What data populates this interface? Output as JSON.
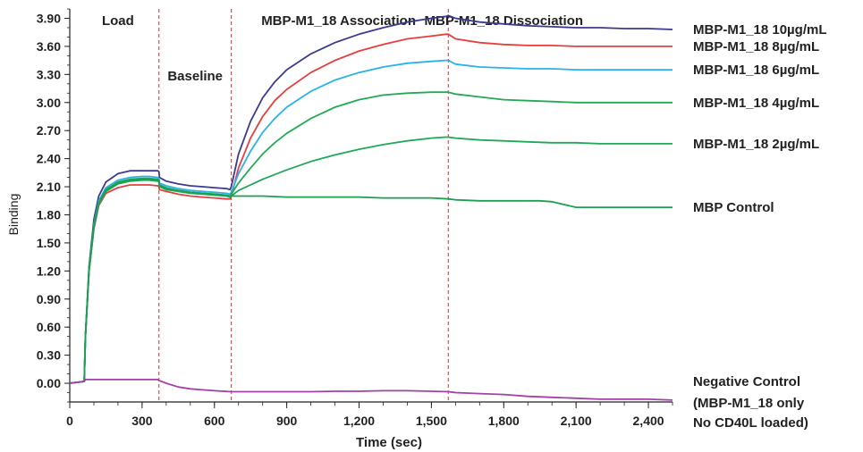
{
  "chart_data": {
    "type": "line",
    "title": "",
    "xlabel": "Time (sec)",
    "ylabel": "Binding",
    "xlim": [
      0,
      2500
    ],
    "ylim": [
      -0.2,
      4.0
    ],
    "xticks": [
      0,
      300,
      600,
      900,
      1200,
      1500,
      1800,
      2100,
      2400
    ],
    "xtick_labels": [
      "0",
      "300",
      "600",
      "900",
      "1,200",
      "1,500",
      "1,800",
      "2,100",
      "2,400"
    ],
    "yticks": [
      0,
      0.3,
      0.6,
      0.9,
      1.2,
      1.5,
      1.8,
      2.1,
      2.4,
      2.7,
      3.0,
      3.3,
      3.6,
      3.9
    ],
    "ytick_labels": [
      "0.00",
      "0.30",
      "0.60",
      "0.90",
      "1.20",
      "1.50",
      "1.80",
      "2.10",
      "2.40",
      "2.70",
      "3.00",
      "3.30",
      "3.60",
      "3.90"
    ],
    "phase_boundaries": [
      370,
      670,
      1570
    ],
    "phases": [
      {
        "label": "Load",
        "x": 200
      },
      {
        "label": "Baseline",
        "x": 520
      },
      {
        "label": "MBP-M1_18 Association",
        "x": 1115
      },
      {
        "label": "MBP-M1_18 Dissociation",
        "x": 1800
      }
    ],
    "grid": false,
    "series": [
      {
        "name": "MBP-M1_18   10µg/mL",
        "color": "#3b3a8f",
        "x": [
          0,
          60,
          65,
          80,
          100,
          120,
          150,
          200,
          250,
          300,
          330,
          365,
          370,
          372,
          400,
          450,
          500,
          550,
          600,
          650,
          665,
          670,
          700,
          750,
          800,
          850,
          900,
          1000,
          1100,
          1200,
          1300,
          1400,
          1500,
          1560,
          1570,
          1600,
          1700,
          1800,
          1900,
          2000,
          2100,
          2200,
          2300,
          2400,
          2500
        ],
        "y": [
          0.0,
          0.02,
          0.5,
          1.25,
          1.75,
          2.0,
          2.15,
          2.24,
          2.27,
          2.27,
          2.27,
          2.27,
          2.26,
          2.2,
          2.16,
          2.13,
          2.11,
          2.1,
          2.09,
          2.08,
          2.07,
          2.1,
          2.45,
          2.8,
          3.05,
          3.22,
          3.35,
          3.52,
          3.64,
          3.73,
          3.8,
          3.86,
          3.9,
          3.92,
          3.93,
          3.9,
          3.86,
          3.84,
          3.82,
          3.81,
          3.8,
          3.8,
          3.79,
          3.79,
          3.78
        ]
      },
      {
        "name": "MBP-M1_18   8µg/mL",
        "color": "#e53e3e",
        "x": [
          0,
          60,
          65,
          80,
          100,
          120,
          150,
          200,
          250,
          300,
          330,
          365,
          370,
          372,
          400,
          450,
          500,
          550,
          600,
          650,
          665,
          670,
          700,
          750,
          800,
          850,
          900,
          1000,
          1100,
          1200,
          1300,
          1400,
          1500,
          1560,
          1570,
          1600,
          1700,
          1800,
          1900,
          2000,
          2100,
          2200,
          2300,
          2400,
          2500
        ],
        "y": [
          0.0,
          0.02,
          0.5,
          1.2,
          1.65,
          1.9,
          2.03,
          2.09,
          2.12,
          2.12,
          2.12,
          2.11,
          2.1,
          2.07,
          2.05,
          2.02,
          2.0,
          1.99,
          1.98,
          1.97,
          1.97,
          2.0,
          2.3,
          2.62,
          2.85,
          3.02,
          3.14,
          3.32,
          3.45,
          3.55,
          3.62,
          3.68,
          3.71,
          3.73,
          3.73,
          3.68,
          3.64,
          3.62,
          3.61,
          3.61,
          3.6,
          3.6,
          3.6,
          3.6,
          3.6
        ]
      },
      {
        "name": "MBP-M1_18   6µg/mL",
        "color": "#29b2e8",
        "x": [
          0,
          60,
          65,
          80,
          100,
          120,
          150,
          200,
          250,
          300,
          330,
          365,
          370,
          372,
          400,
          450,
          500,
          550,
          600,
          650,
          665,
          670,
          700,
          750,
          800,
          850,
          900,
          1000,
          1100,
          1200,
          1300,
          1400,
          1500,
          1560,
          1570,
          1600,
          1700,
          1800,
          1900,
          2000,
          2100,
          2200,
          2300,
          2400,
          2500
        ],
        "y": [
          0.0,
          0.02,
          0.5,
          1.22,
          1.7,
          1.95,
          2.09,
          2.17,
          2.2,
          2.21,
          2.21,
          2.2,
          2.19,
          2.14,
          2.11,
          2.08,
          2.06,
          2.05,
          2.04,
          2.03,
          2.02,
          2.04,
          2.24,
          2.48,
          2.68,
          2.83,
          2.95,
          3.12,
          3.24,
          3.32,
          3.38,
          3.42,
          3.44,
          3.45,
          3.45,
          3.41,
          3.38,
          3.37,
          3.36,
          3.36,
          3.35,
          3.35,
          3.35,
          3.35,
          3.35
        ]
      },
      {
        "name": "MBP-M1_18   4µg/mL",
        "color": "#22aa55",
        "x": [
          0,
          60,
          65,
          80,
          100,
          120,
          150,
          200,
          250,
          300,
          330,
          365,
          370,
          372,
          400,
          450,
          500,
          550,
          600,
          650,
          665,
          670,
          700,
          750,
          800,
          850,
          900,
          1000,
          1100,
          1200,
          1300,
          1400,
          1500,
          1560,
          1570,
          1600,
          1700,
          1800,
          1900,
          2000,
          2100,
          2200,
          2300,
          2400,
          2500
        ],
        "y": [
          0.0,
          0.02,
          0.5,
          1.22,
          1.68,
          1.93,
          2.07,
          2.15,
          2.18,
          2.19,
          2.19,
          2.18,
          2.17,
          2.12,
          2.09,
          2.06,
          2.04,
          2.03,
          2.02,
          2.01,
          2.0,
          2.02,
          2.14,
          2.3,
          2.45,
          2.57,
          2.67,
          2.83,
          2.95,
          3.03,
          3.08,
          3.1,
          3.11,
          3.11,
          3.11,
          3.09,
          3.06,
          3.03,
          3.02,
          3.01,
          3.0,
          3.0,
          3.0,
          3.0,
          3.0
        ]
      },
      {
        "name": "MBP-M1_18   2µg/mL",
        "color": "#1fa85a",
        "x": [
          0,
          60,
          65,
          80,
          100,
          120,
          150,
          200,
          250,
          300,
          330,
          365,
          370,
          372,
          400,
          450,
          500,
          550,
          600,
          650,
          665,
          670,
          700,
          800,
          900,
          1000,
          1100,
          1200,
          1300,
          1400,
          1500,
          1560,
          1570,
          1600,
          1700,
          1800,
          1900,
          2000,
          2100,
          2200,
          2300,
          2400,
          2500
        ],
        "y": [
          0.0,
          0.02,
          0.5,
          1.2,
          1.66,
          1.91,
          2.05,
          2.13,
          2.16,
          2.17,
          2.17,
          2.16,
          2.15,
          2.1,
          2.07,
          2.05,
          2.03,
          2.02,
          2.01,
          2.0,
          1.99,
          2.0,
          2.06,
          2.18,
          2.28,
          2.37,
          2.44,
          2.5,
          2.55,
          2.59,
          2.62,
          2.63,
          2.63,
          2.62,
          2.6,
          2.59,
          2.58,
          2.57,
          2.57,
          2.56,
          2.56,
          2.56,
          2.56
        ]
      },
      {
        "name": "MBP Control",
        "color": "#1e9e50",
        "x": [
          0,
          60,
          65,
          80,
          100,
          120,
          150,
          200,
          250,
          300,
          330,
          365,
          370,
          372,
          400,
          450,
          500,
          550,
          600,
          650,
          665,
          670,
          700,
          800,
          900,
          1000,
          1100,
          1200,
          1300,
          1400,
          1500,
          1570,
          1600,
          1700,
          1800,
          1900,
          1950,
          2000,
          2050,
          2100,
          2200,
          2300,
          2400,
          2500
        ],
        "y": [
          0.0,
          0.02,
          0.5,
          1.21,
          1.67,
          1.92,
          2.06,
          2.14,
          2.17,
          2.18,
          2.18,
          2.17,
          2.16,
          2.11,
          2.08,
          2.06,
          2.04,
          2.03,
          2.02,
          2.01,
          2.0,
          2.0,
          2.0,
          2.0,
          1.99,
          1.99,
          1.99,
          1.99,
          1.98,
          1.98,
          1.98,
          1.97,
          1.96,
          1.95,
          1.95,
          1.95,
          1.95,
          1.94,
          1.91,
          1.88,
          1.88,
          1.88,
          1.88,
          1.88
        ]
      },
      {
        "name": "Negative Control (MBP-M1_18 only No CD40L loaded)",
        "color": "#a241a8",
        "x": [
          0,
          60,
          65,
          100,
          200,
          300,
          365,
          370,
          400,
          450,
          500,
          550,
          600,
          670,
          700,
          800,
          900,
          1000,
          1100,
          1200,
          1300,
          1400,
          1500,
          1570,
          1600,
          1700,
          1800,
          1900,
          2000,
          2100,
          2200,
          2300,
          2400,
          2500
        ],
        "y": [
          0.0,
          0.02,
          0.04,
          0.04,
          0.04,
          0.04,
          0.04,
          0.03,
          0.0,
          -0.04,
          -0.06,
          -0.07,
          -0.08,
          -0.09,
          -0.09,
          -0.09,
          -0.09,
          -0.09,
          -0.085,
          -0.085,
          -0.08,
          -0.08,
          -0.085,
          -0.09,
          -0.1,
          -0.11,
          -0.12,
          -0.14,
          -0.15,
          -0.16,
          -0.17,
          -0.17,
          -0.17,
          -0.18
        ]
      }
    ],
    "series_labels": [
      {
        "name": "MBP-M1_18   10µg/mL",
        "y": 3.78
      },
      {
        "name": "MBP-M1_18   8µg/mL",
        "y": 3.6
      },
      {
        "name": "MBP-M1_18   6µg/mL",
        "y": 3.35
      },
      {
        "name": "MBP-M1_18   4µg/mL",
        "y": 3.0
      },
      {
        "name": "MBP-M1_18   2µg/mL",
        "y": 2.56
      },
      {
        "name": "MBP Control",
        "y": 1.88
      }
    ],
    "negative_label_lines": [
      "Negative Control",
      "(MBP-M1_18 only",
      "No CD40L loaded)"
    ]
  }
}
